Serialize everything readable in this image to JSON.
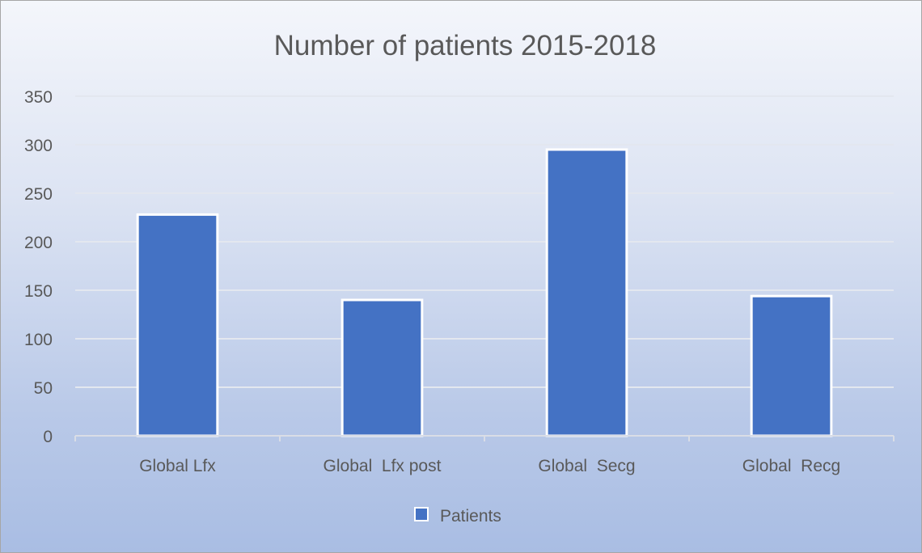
{
  "chart_data": {
    "type": "bar",
    "title": "Number of patients 2015-2018",
    "categories": [
      "Global Lfx",
      "Global  Lfx post",
      "Global  Secg",
      "Global  Recg"
    ],
    "series": [
      {
        "name": "Patients",
        "values": [
          228,
          140,
          295,
          144
        ],
        "color": "#4472c4"
      }
    ],
    "ylim": [
      0,
      350
    ],
    "yticks": [
      0,
      50,
      100,
      150,
      200,
      250,
      300,
      350
    ],
    "grid": true,
    "legend_position": "bottom"
  }
}
